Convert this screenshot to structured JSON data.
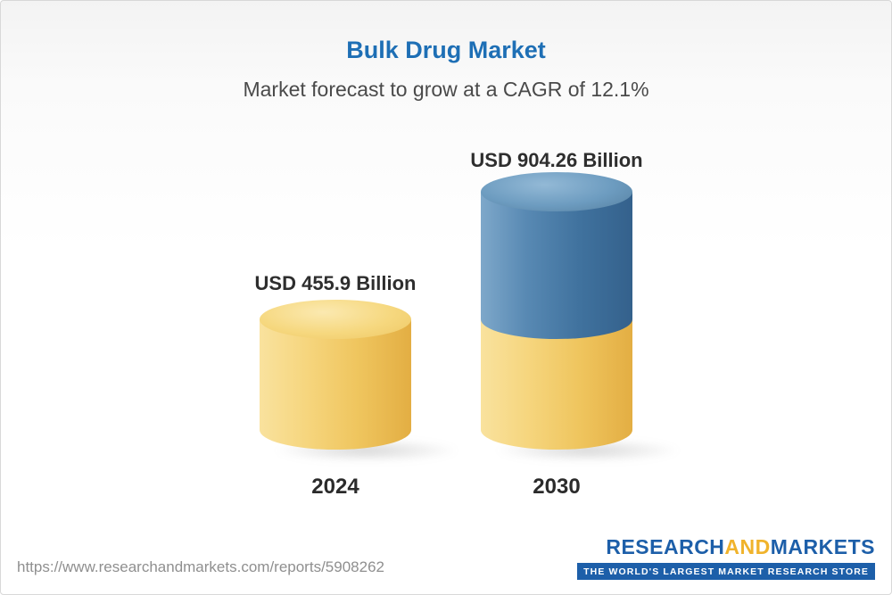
{
  "header": {
    "title": "Bulk Drug Market",
    "subtitle": "Market forecast to grow at a CAGR of 12.1%"
  },
  "chart_data": {
    "type": "bar",
    "variant": "3d-cylinder",
    "title": "Bulk Drug Market",
    "subtitle": "Market forecast to grow at a CAGR of 12.1%",
    "cagr_percent": 12.1,
    "unit": "USD Billion",
    "categories": [
      "2024",
      "2030"
    ],
    "values": [
      455.9,
      904.26
    ],
    "value_labels": [
      "USD 455.9 Billion",
      "USD 904.26 Billion"
    ],
    "legend_position": "none",
    "grid": false,
    "colors": {
      "bar_2024": "#F2CB62",
      "bar_2030_base_segment": "#F2CB62",
      "bar_2030_growth_segment": "#44769F",
      "title_accent": "#1E6FB5",
      "label_text": "#2E2E2E"
    }
  },
  "footer": {
    "url": "https://www.researchandmarkets.com/reports/5908262",
    "logo": {
      "part1": "RESEARCH",
      "part2": "AND",
      "part3": "MARKETS",
      "tagline": "THE WORLD'S LARGEST MARKET RESEARCH STORE",
      "brand_blue": "#1D5FA9",
      "brand_orange": "#F0B32C"
    }
  }
}
